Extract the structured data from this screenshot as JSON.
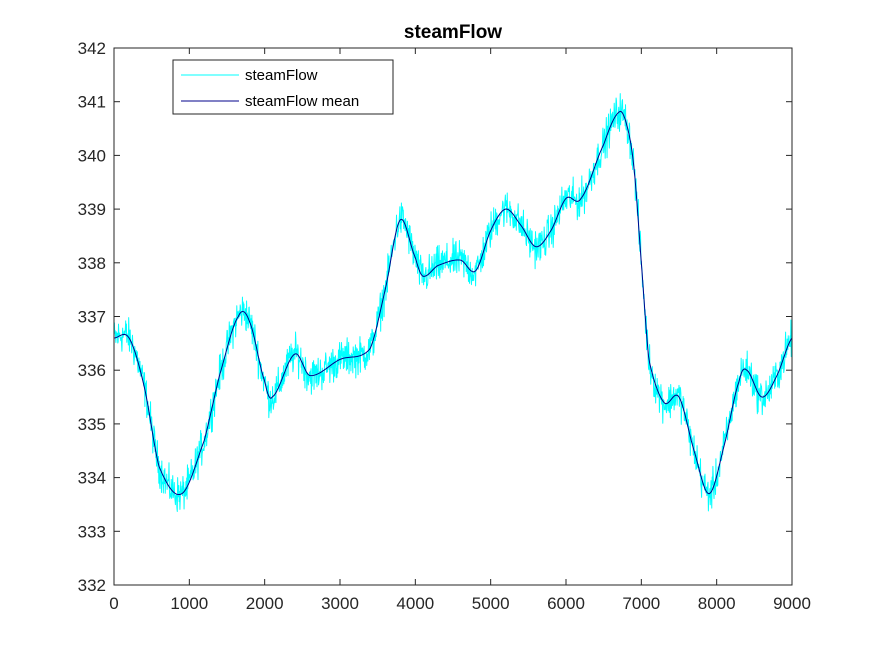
{
  "chart_data": {
    "type": "line",
    "title": "steamFlow",
    "xlabel": "",
    "ylabel": "",
    "xlim": [
      0,
      9000
    ],
    "ylim": [
      332,
      342
    ],
    "xticks": [
      0,
      1000,
      2000,
      3000,
      4000,
      5000,
      6000,
      7000,
      8000,
      9000
    ],
    "yticks": [
      332,
      333,
      334,
      335,
      336,
      337,
      338,
      339,
      340,
      341,
      342
    ],
    "grid": false,
    "legend": {
      "placement": "top-left",
      "entries": [
        "steamFlow",
        "steamFlow mean"
      ]
    },
    "series": [
      {
        "name": "steamFlow",
        "color": "#00FFFF",
        "style": "noisy",
        "noise_amplitude": 0.3,
        "x": [
          0,
          200,
          400,
          600,
          900,
          1200,
          1400,
          1650,
          1800,
          2000,
          2100,
          2400,
          2600,
          3000,
          3400,
          3600,
          3800,
          4000,
          4100,
          4300,
          4600,
          4800,
          5000,
          5200,
          5400,
          5600,
          5800,
          6000,
          6200,
          6500,
          6700,
          6800,
          6900,
          7000,
          7100,
          7300,
          7500,
          7700,
          7900,
          8100,
          8300,
          8400,
          8600,
          8800,
          9000
        ],
        "y": [
          336.6,
          336.6,
          335.7,
          334.2,
          333.7,
          334.7,
          335.9,
          337.0,
          336.9,
          335.8,
          335.5,
          336.3,
          335.9,
          336.2,
          336.4,
          337.5,
          338.8,
          338.1,
          337.75,
          337.95,
          338.05,
          337.85,
          338.6,
          339.0,
          338.7,
          338.3,
          338.6,
          339.2,
          339.2,
          340.2,
          340.8,
          340.6,
          339.8,
          338.0,
          336.2,
          335.4,
          335.5,
          334.5,
          333.7,
          334.6,
          335.8,
          336.0,
          335.5,
          335.9,
          336.6
        ]
      },
      {
        "name": "steamFlow mean",
        "color": "#00008B",
        "style": "smooth",
        "x": [
          0,
          200,
          400,
          600,
          900,
          1200,
          1400,
          1650,
          1800,
          2000,
          2100,
          2400,
          2600,
          3000,
          3400,
          3600,
          3800,
          4000,
          4100,
          4300,
          4600,
          4800,
          5000,
          5200,
          5400,
          5600,
          5800,
          6000,
          6200,
          6500,
          6700,
          6800,
          6900,
          7000,
          7100,
          7300,
          7500,
          7700,
          7900,
          8100,
          8300,
          8400,
          8600,
          8800,
          9000
        ],
        "y": [
          336.6,
          336.6,
          335.7,
          334.2,
          333.7,
          334.7,
          335.9,
          337.0,
          336.9,
          335.8,
          335.5,
          336.3,
          335.9,
          336.2,
          336.4,
          337.5,
          338.8,
          338.1,
          337.75,
          337.95,
          338.05,
          337.85,
          338.6,
          339.0,
          338.7,
          338.3,
          338.6,
          339.2,
          339.2,
          340.2,
          340.8,
          340.6,
          339.8,
          338.0,
          336.2,
          335.4,
          335.5,
          334.5,
          333.7,
          334.6,
          335.8,
          336.0,
          335.5,
          335.9,
          336.6
        ]
      }
    ]
  }
}
